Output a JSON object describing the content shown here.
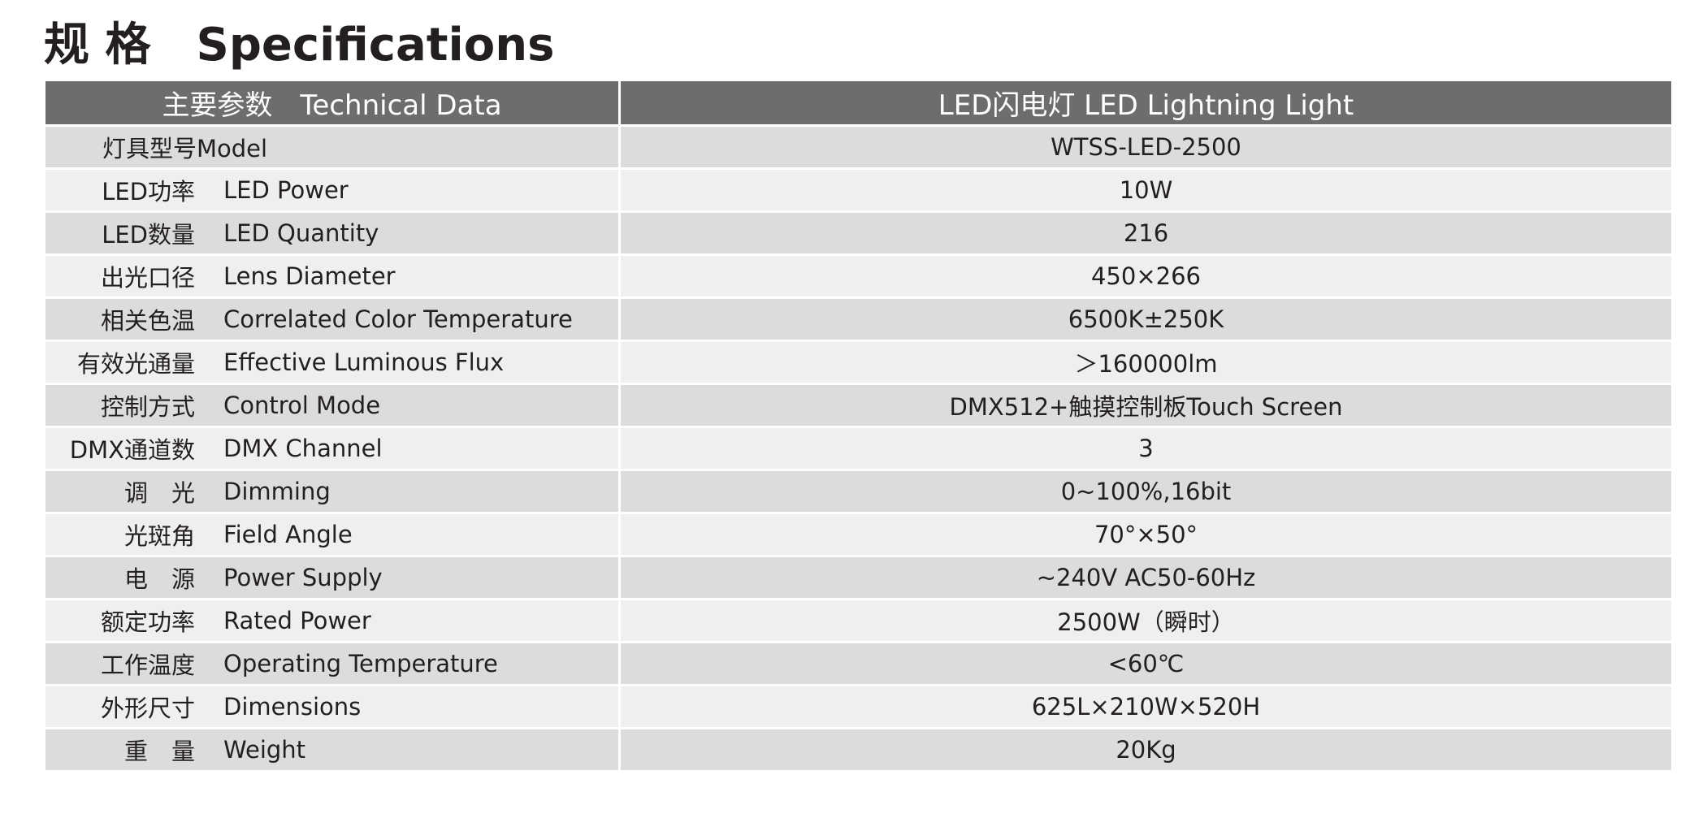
{
  "title": "规 格　Specifications",
  "table": {
    "header": [
      "主要参数　Technical Data",
      "LED闪电灯 LED Lightning Light"
    ],
    "rows": [
      {
        "label": "灯具型号Model",
        "value": "WTSS-LED-2500"
      },
      {
        "zh": "LED功率",
        "en": "LED Power",
        "value": "10W"
      },
      {
        "zh": "LED数量",
        "en": "LED Quantity",
        "value": "216"
      },
      {
        "zh": "出光口径",
        "en": "Lens Diameter",
        "value": "450×266"
      },
      {
        "zh": "相关色温",
        "en": "Correlated Color Temperature",
        "value": "6500K±250K"
      },
      {
        "zh": "有效光通量",
        "en": "Effective Luminous Flux",
        "value": "＞160000lm"
      },
      {
        "zh": "控制方式",
        "en": "Control Mode",
        "value": "DMX512+触摸控制板Touch Screen"
      },
      {
        "zh": "DMX通道数",
        "en": "DMX Channel",
        "value": "3"
      },
      {
        "zh": "调　光",
        "en": "Dimming",
        "value": "0~100%,16bit"
      },
      {
        "zh": "光斑角",
        "en": "Field Angle",
        "value": "70°×50°"
      },
      {
        "zh": "电　源",
        "en": "Power Supply",
        "value": "~240V AC50-60Hz"
      },
      {
        "zh": "额定功率",
        "en": "Rated Power",
        "value": "2500W（瞬时）"
      },
      {
        "zh": "工作温度",
        "en": "Operating Temperature",
        "value": "<60℃"
      },
      {
        "zh": "外形尺寸",
        "en": "Dimensions",
        "value": "625L×210W×520H"
      },
      {
        "zh": "重　量",
        "en": "Weight",
        "value": "20Kg"
      }
    ]
  }
}
